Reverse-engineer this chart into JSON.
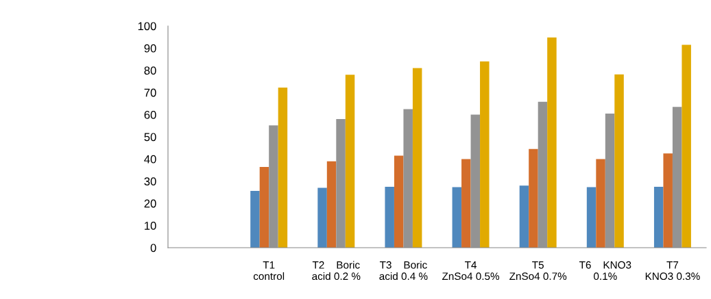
{
  "chart_data": {
    "type": "bar",
    "categories": [
      null,
      "T1\ncontrol",
      "T2    Boric\nacid 0.2 %",
      "T3    Boric\nacid 0.4 %",
      "T4\nZnSo4 0.5%",
      "T5\nZnSo4 0.7%",
      "T6    KNO3\n0.1%",
      "T7\nKNO3 0.3%"
    ],
    "series": [
      {
        "color": "#4f88bd",
        "values": [
          null,
          25.6,
          27,
          27.5,
          27.3,
          28,
          27.3,
          27.5
        ]
      },
      {
        "color": "#d36d2b",
        "values": [
          null,
          36.4,
          39,
          41.5,
          40,
          44.5,
          40,
          42.5
        ]
      },
      {
        "color": "#939393",
        "values": [
          null,
          55.2,
          58,
          62.5,
          60,
          65.8,
          60.5,
          63.5
        ]
      },
      {
        "color": "#e1aa00",
        "values": [
          null,
          72.2,
          78,
          81,
          84,
          94.8,
          78.2,
          91.5
        ]
      }
    ],
    "ylim": [
      0,
      100
    ],
    "yticks": [
      0,
      10,
      20,
      30,
      40,
      50,
      60,
      70,
      80,
      90,
      100
    ],
    "grid": false,
    "legend": false
  }
}
